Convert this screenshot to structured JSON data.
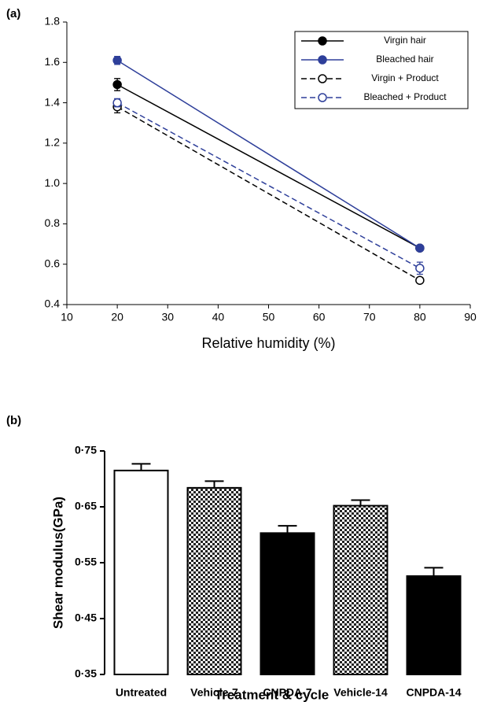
{
  "chart_data": [
    {
      "type": "line",
      "panel": "(a)",
      "xlabel": "Relative humidity (%)",
      "x": [
        20,
        80
      ],
      "series": [
        {
          "name": "Virgin hair",
          "color": "#000000",
          "marker": "filled",
          "dashed": false,
          "values": [
            1.49,
            0.68
          ],
          "errors": [
            0.03,
            0.01
          ]
        },
        {
          "name": "Bleached hair",
          "color": "#2e3f9a",
          "marker": "filled",
          "dashed": false,
          "values": [
            1.61,
            0.68
          ],
          "errors": [
            0.02,
            0.01
          ]
        },
        {
          "name": "Virgin + Product",
          "color": "#000000",
          "marker": "open",
          "dashed": true,
          "values": [
            1.38,
            0.52
          ],
          "errors": [
            0.03,
            0.01
          ]
        },
        {
          "name": "Bleached + Product",
          "color": "#2e3f9a",
          "marker": "open",
          "dashed": true,
          "values": [
            1.4,
            0.58
          ],
          "errors": [
            0.02,
            0.03
          ]
        }
      ],
      "xlim": [
        10,
        90
      ],
      "xticks": [
        10,
        20,
        30,
        40,
        50,
        60,
        70,
        80,
        90
      ],
      "ylim": [
        0.4,
        1.8
      ],
      "yticks": [
        0.4,
        0.6,
        0.8,
        {
          "value": 1,
          "label": "1.0"
        },
        1.2,
        1.4,
        1.6,
        1.8
      ],
      "legend": "upper right"
    },
    {
      "type": "bar",
      "panel": "(b)",
      "xlabel": "Treatment & cycle",
      "ylabel": "Shear modulus(GPa)",
      "categories": [
        "Untreated",
        "Vehicle-7",
        "CNPDA-7",
        "Vehicle-14",
        "CNPDA-14"
      ],
      "values": [
        0.715,
        0.684,
        0.603,
        0.652,
        0.526
      ],
      "errors": [
        0.012,
        0.012,
        0.013,
        0.01,
        0.015
      ],
      "fills": [
        "open",
        "checker",
        "solid",
        "checker",
        "solid"
      ],
      "ylim": [
        0.35,
        0.75
      ],
      "yticks": [
        {
          "value": 0.35,
          "label": "0·35"
        },
        {
          "value": 0.45,
          "label": "0·45"
        },
        {
          "value": 0.55,
          "label": "0·55"
        },
        {
          "value": 0.65,
          "label": "0·65"
        },
        {
          "value": 0.75,
          "label": "0·75"
        }
      ]
    }
  ]
}
